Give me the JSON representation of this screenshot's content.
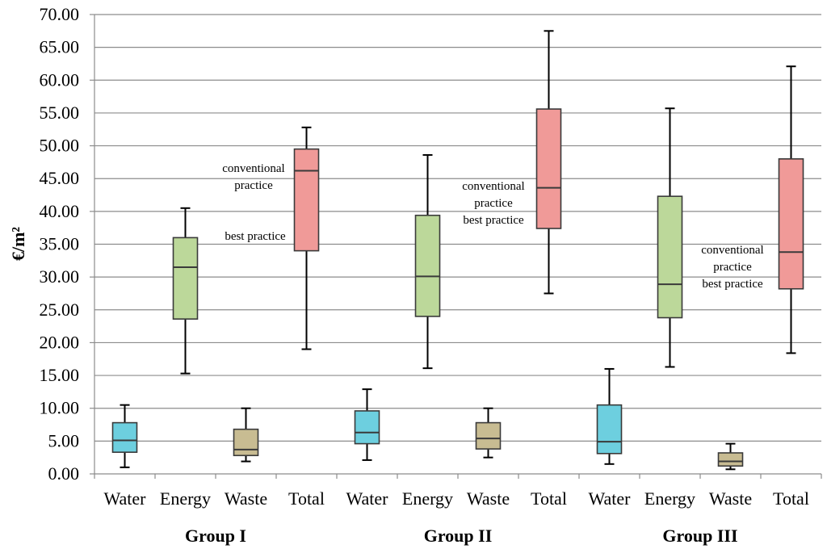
{
  "chart_data": {
    "type": "box",
    "ylabel": "€/m²",
    "ylim": [
      0,
      70
    ],
    "yticks": [
      "0.00",
      "5.00",
      "10.00",
      "15.00",
      "20.00",
      "25.00",
      "30.00",
      "35.00",
      "40.00",
      "45.00",
      "50.00",
      "55.00",
      "60.00",
      "65.00",
      "70.00"
    ],
    "grid": true,
    "categories": [
      "Water",
      "Energy",
      "Waste",
      "Total"
    ],
    "colors": {
      "Water": "#6dcfdf",
      "Energy": "#bcd89a",
      "Waste": "#c8bc92",
      "Total": "#f09a98"
    },
    "groups": [
      {
        "name": "Group I",
        "boxes": [
          {
            "category": "Water",
            "min": 1.0,
            "q1": 3.3,
            "median": 5.1,
            "q3": 7.8,
            "max": 10.5
          },
          {
            "category": "Energy",
            "min": 15.3,
            "q1": 23.6,
            "median": 31.5,
            "q3": 36.0,
            "max": 40.5
          },
          {
            "category": "Waste",
            "min": 1.9,
            "q1": 2.8,
            "median": 3.7,
            "q3": 6.8,
            "max": 10.0
          },
          {
            "category": "Total",
            "min": 19.0,
            "q1": 34.0,
            "median": 46.2,
            "q3": 49.5,
            "max": 52.8
          }
        ]
      },
      {
        "name": "Group II",
        "boxes": [
          {
            "category": "Water",
            "min": 2.1,
            "q1": 4.6,
            "median": 6.3,
            "q3": 9.6,
            "max": 12.9
          },
          {
            "category": "Energy",
            "min": 16.1,
            "q1": 24.0,
            "median": 30.1,
            "q3": 39.4,
            "max": 48.6
          },
          {
            "category": "Waste",
            "min": 2.5,
            "q1": 3.8,
            "median": 5.4,
            "q3": 7.8,
            "max": 10.0
          },
          {
            "category": "Total",
            "min": 27.5,
            "q1": 37.4,
            "median": 43.6,
            "q3": 55.6,
            "max": 67.5
          }
        ]
      },
      {
        "name": "Group III",
        "boxes": [
          {
            "category": "Water",
            "min": 1.5,
            "q1": 3.1,
            "median": 4.9,
            "q3": 10.5,
            "max": 16.0
          },
          {
            "category": "Energy",
            "min": 16.3,
            "q1": 23.8,
            "median": 28.9,
            "q3": 42.3,
            "max": 55.7
          },
          {
            "category": "Waste",
            "min": 0.7,
            "q1": 1.2,
            "median": 1.9,
            "q3": 3.2,
            "max": 4.6
          },
          {
            "category": "Total",
            "min": 18.4,
            "q1": 28.2,
            "median": 33.8,
            "q3": 48.0,
            "max": 62.1
          }
        ]
      }
    ],
    "annotations": [
      {
        "group": "Group I",
        "lines": [
          "conventional",
          "practice"
        ]
      },
      {
        "group": "Group I",
        "lines": [
          "best practice"
        ]
      },
      {
        "group": "Group II",
        "lines": [
          "conventional",
          "practice",
          "best practice"
        ]
      },
      {
        "group": "Group III",
        "lines": [
          "conventional",
          "practice",
          "best practice"
        ]
      }
    ]
  }
}
